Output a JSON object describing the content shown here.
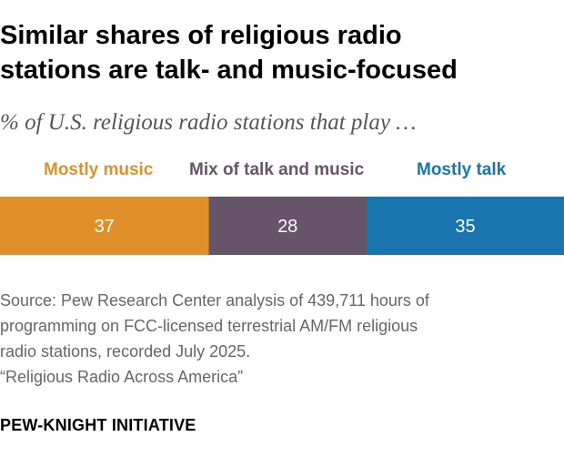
{
  "title_lines": [
    "Similar shares of religious radio",
    "stations are talk- and music-focused"
  ],
  "subtitle": "% of U.S. religious radio stations that play …",
  "notes": {
    "source_lines": [
      "Source: Pew Research Center analysis of 439,711 hours of",
      "programming on FCC-licensed terrestrial AM/FM religious",
      "radio stations, recorded July 2025."
    ],
    "report": "“Religious Radio Across America”"
  },
  "brand": "PEW-KNIGHT INITIATIVE",
  "chart_data": {
    "type": "bar",
    "orientation": "horizontal-stacked",
    "title": "Similar shares of religious radio stations are talk- and music-focused",
    "subtitle": "% of U.S. religious radio stations that play …",
    "categories": [
      "Mostly music",
      "Mix of talk and music",
      "Mostly talk"
    ],
    "values": [
      37,
      28,
      35
    ],
    "colors": [
      "#E18F2A",
      "#665469",
      "#1A75AE"
    ],
    "value_label_color": "#FFFFFF",
    "total": 100,
    "legend": "top",
    "xlabel": "",
    "ylabel": "",
    "xlim": [
      0,
      100
    ]
  }
}
